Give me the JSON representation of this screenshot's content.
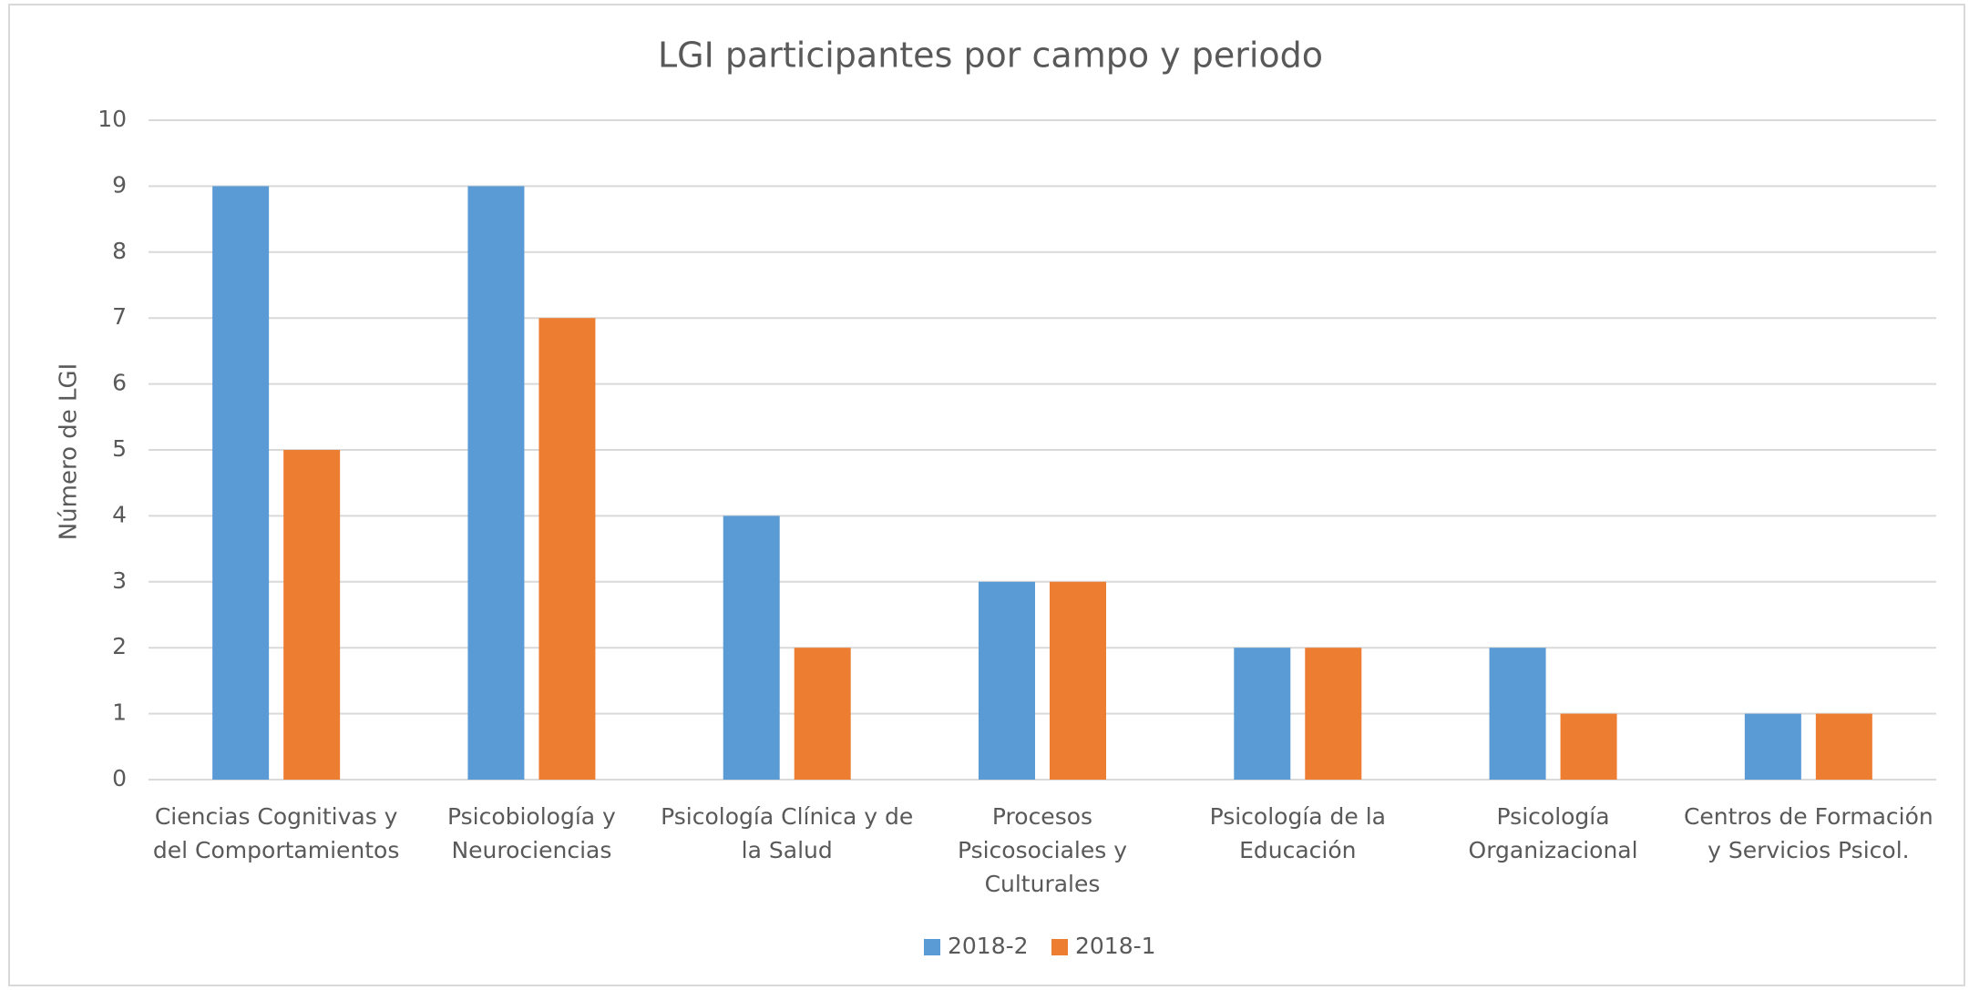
{
  "chart_data": {
    "type": "bar",
    "title": "LGI participantes por campo y periodo",
    "y_label": "Número de LGI",
    "categories": [
      "Ciencias Cognitivas y del Comportamientos",
      "Psicobiología y Neurociencias",
      "Psicología Clínica y de la Salud",
      "Procesos Psicosociales y Culturales",
      "Psicología de la Educación",
      "Psicología Organizacional",
      "Centros de Formación y Servicios Psicol."
    ],
    "series": [
      {
        "name": "2018-2",
        "color": "#5b9bd5",
        "values": [
          9,
          9,
          4,
          3,
          2,
          2,
          1
        ]
      },
      {
        "name": "2018-1",
        "color": "#ed7d31",
        "values": [
          5,
          7,
          2,
          3,
          2,
          1,
          1
        ]
      }
    ],
    "ylim": [
      0,
      10
    ],
    "yticks": [
      0,
      1,
      2,
      3,
      4,
      5,
      6,
      7,
      8,
      9,
      10
    ],
    "grid": true,
    "legend": "bottom"
  }
}
